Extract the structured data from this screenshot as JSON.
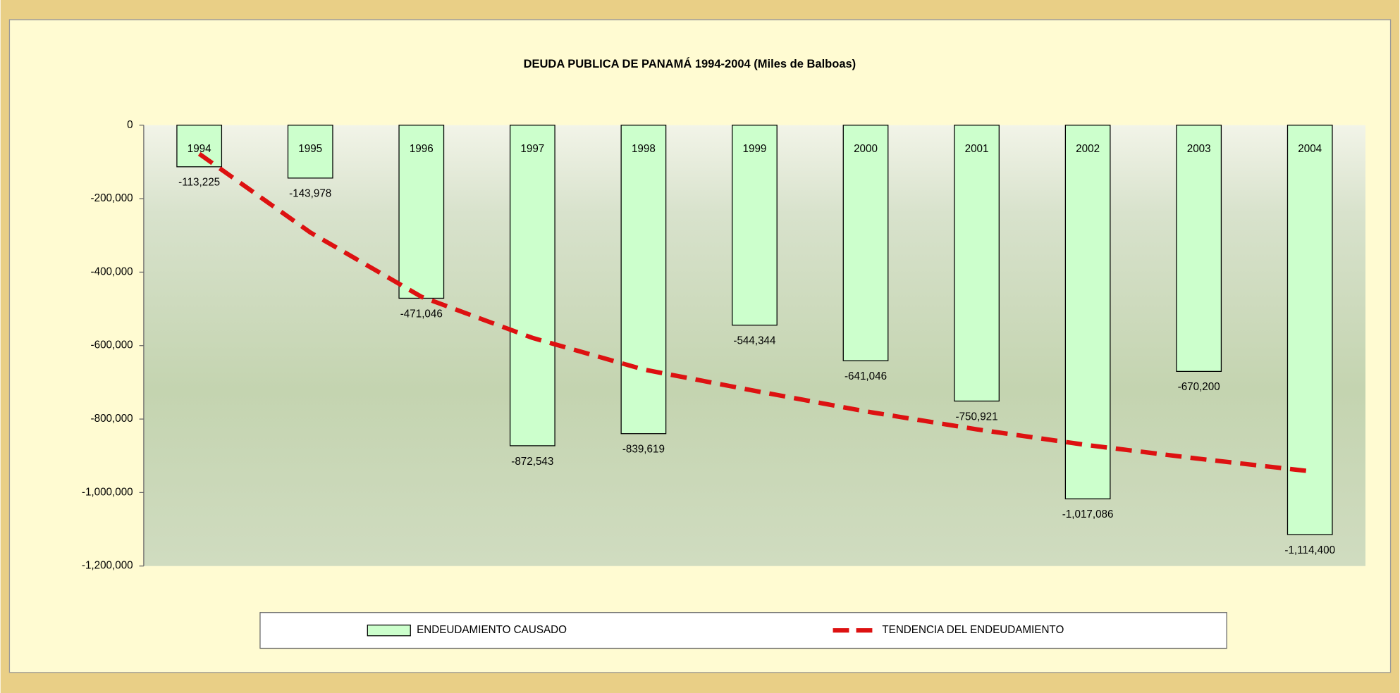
{
  "chart_data": {
    "type": "bar",
    "title": "DEUDA PUBLICA DE PANAMÁ 1994-2004 (Miles de Balboas)",
    "categories": [
      "1994",
      "1995",
      "1996",
      "1997",
      "1998",
      "1999",
      "2000",
      "2001",
      "2002",
      "2003",
      "2004"
    ],
    "series": [
      {
        "name": "ENDEUDAMIENTO CAUSADO",
        "color": "#ccffcc",
        "values": [
          -113225,
          -143978,
          -471046,
          -872543,
          -839619,
          -544344,
          -641046,
          -750921,
          -1017086,
          -670200,
          -1114400
        ],
        "value_labels": [
          "-113,225",
          "-143,978",
          "-471,046",
          "-872,543",
          "-839,619",
          "-544,344",
          "-641,046",
          "-750,921",
          "-1,017,086",
          "-670,200",
          "-1,114,400"
        ]
      },
      {
        "name": "TENDENCIA DEL ENDEUDAMIENTO",
        "color": "#dd1111",
        "type": "line",
        "values": [
          -78000,
          -292000,
          -467000,
          -579000,
          -665000,
          -723000,
          -779000,
          -828000,
          -871000,
          -908000,
          -942000
        ]
      }
    ],
    "ylim": [
      -1200000,
      0
    ],
    "yticks": [
      0,
      {
        "value": -200000,
        "label": "-200,000"
      },
      {
        "value": -400000,
        "label": "-400,000"
      },
      {
        "value": -600000,
        "label": "-600,000"
      },
      {
        "value": -800000,
        "label": "-800,000"
      },
      {
        "value": -1000000,
        "label": "-1,000,000"
      },
      {
        "value": -1200000,
        "label": "-1,200,000"
      }
    ]
  }
}
